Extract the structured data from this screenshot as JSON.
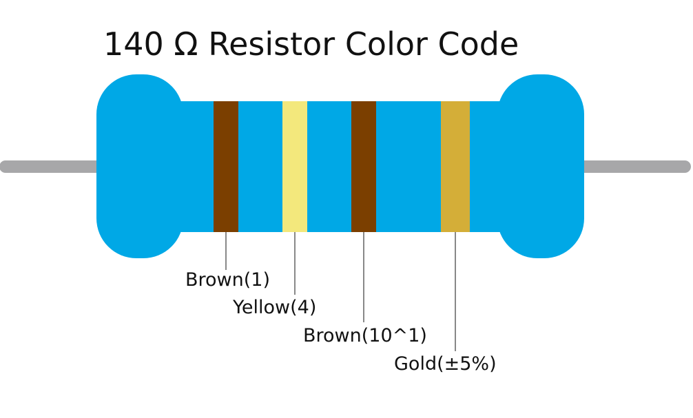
{
  "title": "140 Ω Resistor Color Code",
  "bands": [
    {
      "label": "Brown(1)",
      "color": "#7b3f00"
    },
    {
      "label": "Yellow(4)",
      "color": "#f3e87c"
    },
    {
      "label": "Brown(10^1)",
      "color": "#7b3f00"
    },
    {
      "label": "Gold(±5%)",
      "color": "#d4ae38"
    }
  ]
}
